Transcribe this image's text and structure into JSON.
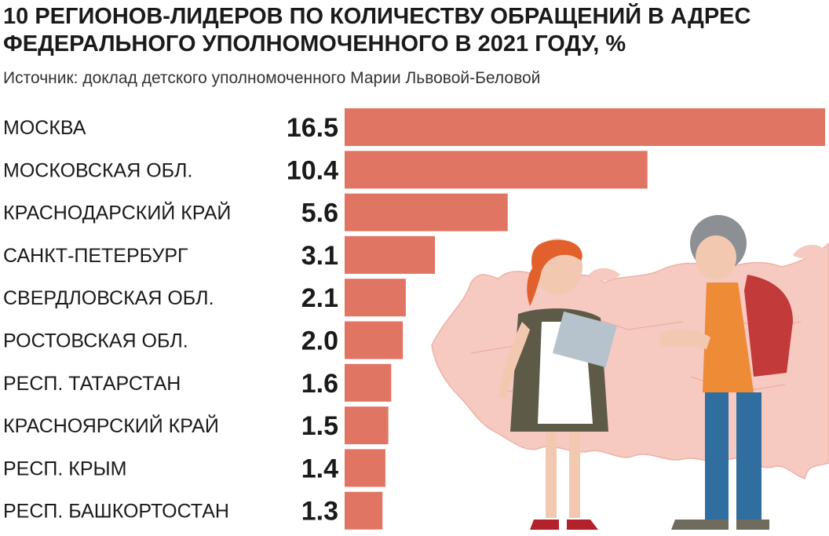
{
  "title_line1": "10 РЕГИОНОВ-ЛИДЕРОВ ПО КОЛИЧЕСТВУ ОБРАЩЕНИЙ В АДРЕС",
  "title_line2": "ФЕДЕРАЛЬНОГО УПОЛНОМОЧЕННОГО В 2021 ГОДУ, %",
  "subtitle": "Источник: доклад детского уполномоченного Марии Львовой-Беловой",
  "colors": {
    "bar": "#e07563",
    "map": "#f6c9c1",
    "text": "#1a1a1a"
  },
  "chart_data": {
    "type": "bar",
    "orientation": "horizontal",
    "title": "10 РЕГИОНОВ-ЛИДЕРОВ ПО КОЛИЧЕСТВУ ОБРАЩЕНИЙ В АДРЕС ФЕДЕРАЛЬНОГО УПОЛНОМОЧЕННОГО В 2021 ГОДУ, %",
    "categories": [
      "МОСКВА",
      "МОСКОВСКАЯ ОБЛ.",
      "КРАСНОДАРСКИЙ КРАЙ",
      "САНКТ-ПЕТЕРБУРГ",
      "СВЕРДЛОВСКАЯ ОБЛ.",
      "РОСТОВСКАЯ ОБЛ.",
      "РЕСП. ТАТАРСТАН",
      "КРАСНОЯРСКИЙ КРАЙ",
      "РЕСП. КРЫМ",
      "РЕСП. БАШКОРТОСТАН"
    ],
    "values": [
      16.5,
      10.4,
      5.6,
      3.1,
      2.1,
      2.0,
      1.6,
      1.5,
      1.4,
      1.3
    ],
    "value_labels": [
      "16.5",
      "10.4",
      "5.6",
      "3.1",
      "2.1",
      "2.0",
      "1.6",
      "1.5",
      "1.4",
      "1.3"
    ],
    "xlim": [
      0,
      16.5
    ],
    "grid": false,
    "legend": "none"
  }
}
